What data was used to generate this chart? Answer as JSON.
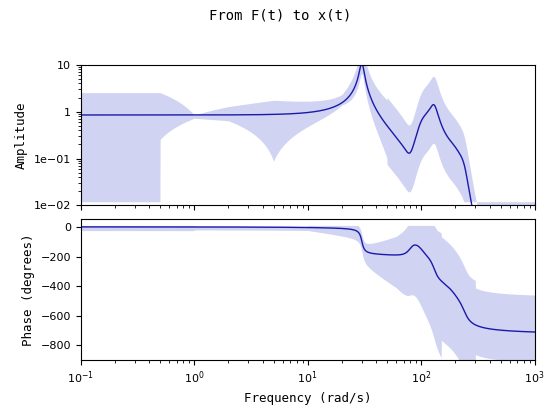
{
  "title": "From F(t) to x(t)",
  "xlabel": "Frequency (rad/s)",
  "ylabel_amp": "Amplitude",
  "ylabel_phase": "Phase (degrees)",
  "freq_range": [
    0.1,
    1000
  ],
  "amp_ylim": [
    0.01,
    10
  ],
  "phase_ylim": [
    -900,
    50
  ],
  "trace_color": "#1a1aaa",
  "fill_color": "#aab0e8",
  "fill_alpha": 0.55,
  "bg_color": "#ffffff",
  "title_fontsize": 10,
  "label_fontsize": 9,
  "tick_fontsize": 8
}
